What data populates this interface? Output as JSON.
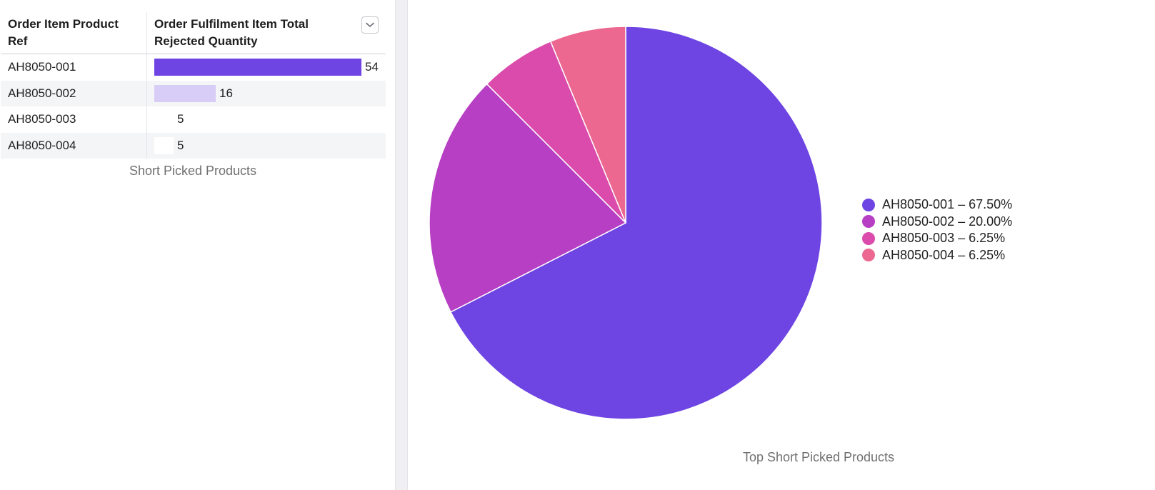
{
  "table": {
    "headers": [
      "Order Item Product Ref",
      "Order Fulfilment Item Total Rejected Quantity"
    ],
    "sort_icon": "chevron-down-icon",
    "rows": [
      {
        "ref": "AH8050-001",
        "value": "54",
        "num": 54,
        "color": "#6e44e3"
      },
      {
        "ref": "AH8050-002",
        "value": "16",
        "num": 16,
        "color": "#d8cdf6"
      },
      {
        "ref": "AH8050-003",
        "value": "5",
        "num": 5,
        "color": "#ffffff"
      },
      {
        "ref": "AH8050-004",
        "value": "5",
        "num": 5,
        "color": "#ffffff"
      }
    ],
    "caption": "Short Picked Products"
  },
  "chart_data": {
    "type": "pie",
    "categories": [
      "AH8050-001",
      "AH8050-002",
      "AH8050-003",
      "AH8050-004"
    ],
    "values": [
      67.5,
      20.0,
      6.25,
      6.25
    ],
    "legend_labels": [
      "AH8050-001 – 67.50%",
      "AH8050-002 – 20.00%",
      "AH8050-003 – 6.25%",
      "AH8050-004 – 6.25%"
    ],
    "colors": [
      "#6e44e3",
      "#b73fc4",
      "#db4bab",
      "#ec6890"
    ],
    "legend": "right",
    "title": "Top Short Picked Products"
  }
}
